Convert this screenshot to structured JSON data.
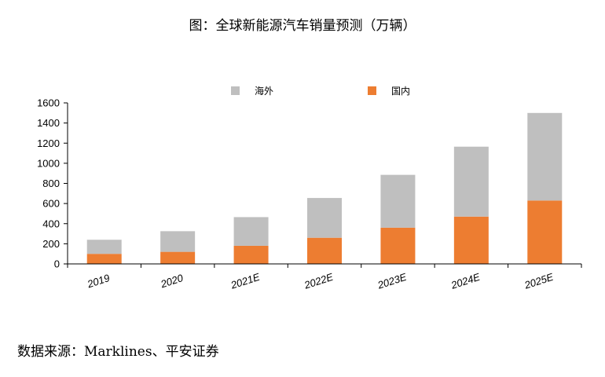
{
  "title": "图：全球新能源汽车销量预测（万辆）",
  "source": "数据来源：Marklines、平安证券",
  "chart_data": {
    "type": "bar",
    "stacked": true,
    "categories": [
      "2019",
      "2020",
      "2021E",
      "2022E",
      "2023E",
      "2024E",
      "2025E"
    ],
    "series": [
      {
        "name": "国内",
        "color": "#ED7D31",
        "values": [
          100,
          120,
          180,
          260,
          360,
          470,
          630
        ]
      },
      {
        "name": "海外",
        "color": "#BFBFBF",
        "values": [
          140,
          205,
          285,
          395,
          525,
          695,
          870
        ]
      }
    ],
    "ylim": [
      0,
      1600
    ],
    "yticks": [
      "0",
      "200",
      "400",
      "600",
      "800",
      "1000",
      "1200",
      "1400",
      "1600"
    ],
    "legend": {
      "placement": "top",
      "order": [
        "海外",
        "国内"
      ]
    },
    "grid": false
  }
}
